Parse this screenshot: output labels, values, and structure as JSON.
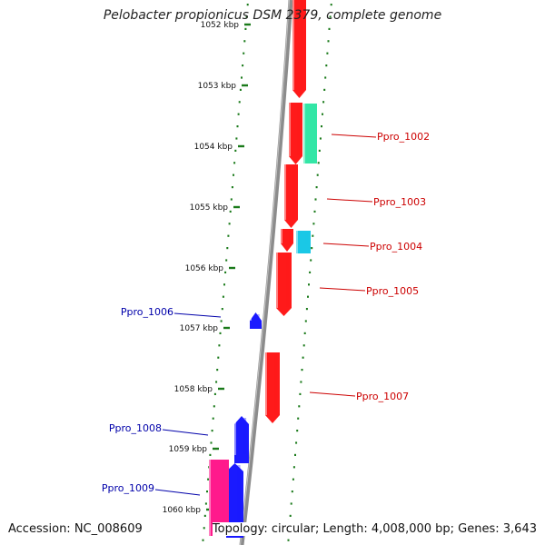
{
  "title": "Pelobacter propionicus DSM 2379, complete genome",
  "footer": {
    "accession": "Accession: NC_008609",
    "summary": "Topology: circular; Length: 4,008,000 bp; Genes: 3,643"
  },
  "colors": {
    "backbone": "#8c8c8c",
    "tick": "#1a7a1a",
    "forward_gene": "#ff1a1a",
    "reverse_gene": "#1a1aff",
    "forward_label": "#cc0000",
    "reverse_label": "#0000aa",
    "teal_feature": "#33e6a6",
    "cyan_feature": "#1ac8e6",
    "pink_feature": "#ff1a8c"
  },
  "scale_ticks": [
    {
      "label": "1052 kbp"
    },
    {
      "label": "1053 kbp"
    },
    {
      "label": "1054 kbp"
    },
    {
      "label": "1055 kbp"
    },
    {
      "label": "1056 kbp"
    },
    {
      "label": "1057 kbp"
    },
    {
      "label": "1058 kbp"
    },
    {
      "label": "1059 kbp"
    },
    {
      "label": "1060 kbp"
    }
  ],
  "genes": [
    {
      "id": "Ppro_1002",
      "label": "Ppro_1002",
      "strand": "+"
    },
    {
      "id": "Ppro_1003",
      "label": "Ppro_1003",
      "strand": "+"
    },
    {
      "id": "Ppro_1004",
      "label": "Ppro_1004",
      "strand": "+"
    },
    {
      "id": "Ppro_1005",
      "label": "Ppro_1005",
      "strand": "+"
    },
    {
      "id": "Ppro_1006",
      "label": "Ppro_1006",
      "strand": "-"
    },
    {
      "id": "Ppro_1007",
      "label": "Ppro_1007",
      "strand": "+"
    },
    {
      "id": "Ppro_1008",
      "label": "Ppro_1008",
      "strand": "-"
    },
    {
      "id": "Ppro_1009",
      "label": "Ppro_1009",
      "strand": "-"
    }
  ]
}
